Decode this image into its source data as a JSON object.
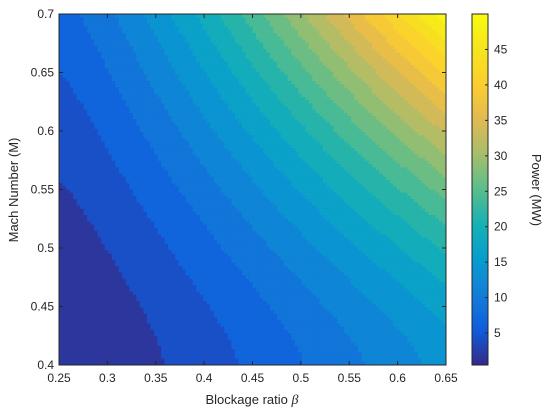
{
  "chart_data": {
    "type": "heatmap",
    "subtype": "filled-contour",
    "xlabel": "Blockage ratio",
    "xlabel_symbol": "β",
    "ylabel": "Mach Number (M)",
    "colorbar_label": "Power (MW)",
    "xlim": [
      0.25,
      0.65
    ],
    "ylim": [
      0.4,
      0.7
    ],
    "x_ticks": [
      "0.25",
      "0.3",
      "0.35",
      "0.4",
      "0.45",
      "0.5",
      "0.55",
      "0.6",
      "0.65"
    ],
    "y_ticks": [
      "0.4",
      "0.45",
      "0.5",
      "0.55",
      "0.6",
      "0.65",
      "0.7"
    ],
    "colorbar_ticks": [
      "5",
      "10",
      "15",
      "20",
      "25",
      "30",
      "35",
      "40",
      "45"
    ],
    "colorbar_range": [
      0.5,
      50
    ],
    "colormap": "parula",
    "contour_levels": 20,
    "grid": false,
    "value_samples": {
      "corner_x0.25_y0.4": 0.5,
      "corner_x0.65_y0.4": 14,
      "corner_x0.25_y0.7": 7,
      "corner_x0.65_y0.7": 49
    }
  }
}
